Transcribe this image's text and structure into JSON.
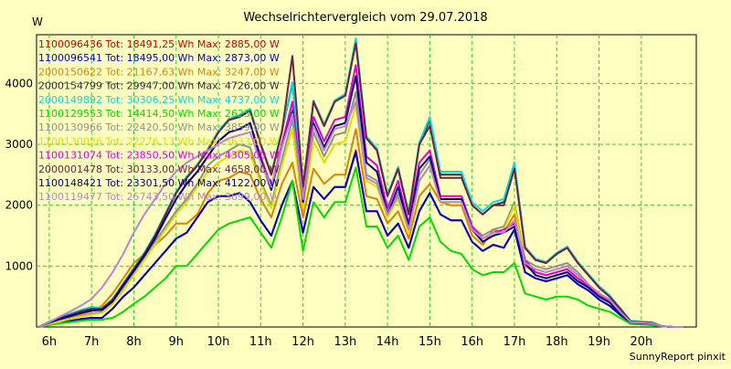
{
  "chart_data": {
    "type": "line",
    "title": "Wechselrichtervergleich vom 29.07.2018",
    "ylabel": "W",
    "footer": "SunnyReport pinxit",
    "ylim": [
      0,
      4800
    ],
    "xlim": [
      5.7,
      21.3
    ],
    "yticks": [
      1000,
      2000,
      3000,
      4000
    ],
    "xticks": [
      {
        "v": 6,
        "label": "6h"
      },
      {
        "v": 7,
        "label": "7h"
      },
      {
        "v": 8,
        "label": "8h"
      },
      {
        "v": 9,
        "label": "9h"
      },
      {
        "v": 10,
        "label": "10h"
      },
      {
        "v": 11,
        "label": "11h"
      },
      {
        "v": 12,
        "label": "12h"
      },
      {
        "v": 13,
        "label": "13h"
      },
      {
        "v": 14,
        "label": "14h"
      },
      {
        "v": 15,
        "label": "15h"
      },
      {
        "v": 16,
        "label": "16h"
      },
      {
        "v": 17,
        "label": "17h"
      },
      {
        "v": 18,
        "label": "18h"
      },
      {
        "v": 19,
        "label": "19h"
      },
      {
        "v": 20,
        "label": "20h"
      }
    ],
    "grid": true,
    "legend_position": "top-left",
    "x": [
      5.75,
      6.0,
      6.25,
      6.5,
      6.75,
      7.0,
      7.25,
      7.5,
      7.75,
      8.0,
      8.25,
      8.5,
      8.75,
      9.0,
      9.25,
      9.5,
      9.75,
      10.0,
      10.25,
      10.5,
      10.75,
      11.0,
      11.25,
      11.5,
      11.75,
      12.0,
      12.25,
      12.5,
      12.75,
      13.0,
      13.25,
      13.5,
      13.75,
      14.0,
      14.25,
      14.5,
      14.75,
      15.0,
      15.25,
      15.5,
      15.75,
      16.0,
      16.25,
      16.5,
      16.75,
      17.0,
      17.25,
      17.5,
      17.75,
      18.0,
      18.25,
      18.5,
      18.75,
      19.0,
      19.25,
      19.5,
      19.75,
      20.0,
      20.25,
      20.5,
      20.75,
      21.0
    ],
    "series": [
      {
        "name": "1100096436",
        "label": "1100096436 Tot: 18491,25 Wh Max: 2885,00 W",
        "color": "#cc0000",
        "values": [
          0,
          40,
          80,
          100,
          130,
          150,
          150,
          300,
          500,
          650,
          850,
          1050,
          1250,
          1450,
          1550,
          1800,
          2050,
          2150,
          2150,
          2200,
          2050,
          1750,
          1500,
          2000,
          2400,
          1550,
          2300,
          2100,
          2300,
          2300,
          2900,
          1900,
          1900,
          1500,
          1700,
          1300,
          1900,
          2200,
          1850,
          1750,
          1750,
          1400,
          1250,
          1350,
          1300,
          1600,
          900,
          800,
          750,
          800,
          850,
          700,
          600,
          450,
          350,
          200,
          70,
          60,
          50,
          10,
          0,
          0
        ]
      },
      {
        "name": "1100096541",
        "label": "1100096541 Tot: 18495,00 Wh Max: 2873,00 W",
        "color": "#0000cc",
        "values": [
          0,
          40,
          80,
          100,
          130,
          150,
          150,
          300,
          500,
          650,
          850,
          1050,
          1250,
          1450,
          1550,
          1800,
          2050,
          2150,
          2150,
          2200,
          2050,
          1750,
          1500,
          2000,
          2400,
          1550,
          2300,
          2100,
          2300,
          2300,
          2870,
          1900,
          1900,
          1500,
          1700,
          1300,
          1900,
          2200,
          1850,
          1750,
          1750,
          1400,
          1250,
          1350,
          1300,
          1600,
          900,
          800,
          750,
          800,
          850,
          700,
          600,
          450,
          350,
          200,
          70,
          60,
          50,
          10,
          0,
          0
        ]
      },
      {
        "name": "2000150622",
        "label": "2000150622 Tot: 21167,63 Wh Max: 3247,00 W",
        "color": "#e08000",
        "values": [
          0,
          60,
          110,
          160,
          210,
          260,
          350,
          550,
          800,
          1050,
          1200,
          1350,
          1500,
          1700,
          1700,
          1850,
          2200,
          2400,
          2450,
          2550,
          2500,
          2100,
          1800,
          2350,
          2700,
          1800,
          2600,
          2350,
          2500,
          2500,
          3250,
          2150,
          2100,
          1700,
          1900,
          1450,
          2150,
          2350,
          2050,
          2000,
          2000,
          1500,
          1350,
          1600,
          1550,
          1850,
          1000,
          900,
          850,
          900,
          950,
          800,
          650,
          500,
          400,
          230,
          80,
          70,
          60,
          10,
          0,
          0
        ]
      },
      {
        "name": "2000154799",
        "label": "2000154799 Tot: 29947,00 Wh Max: 4726,00 W",
        "color": "#303030",
        "values": [
          0,
          80,
          150,
          200,
          260,
          300,
          300,
          450,
          700,
          950,
          1200,
          1500,
          1850,
          2200,
          2450,
          2650,
          2900,
          3200,
          3400,
          3450,
          3550,
          3000,
          2500,
          3200,
          4000,
          2300,
          3700,
          3300,
          3700,
          3800,
          4700,
          3100,
          2900,
          2150,
          2600,
          1850,
          3000,
          3400,
          2500,
          2500,
          2500,
          2000,
          1850,
          2000,
          2050,
          2650,
          1300,
          1100,
          1050,
          1200,
          1300,
          1050,
          850,
          650,
          500,
          300,
          90,
          80,
          70,
          10,
          0,
          0
        ]
      },
      {
        "name": "2000149892",
        "label": "2000149892 Tot: 30306,25 Wh Max: 4737,00 W",
        "color": "#00dddd",
        "values": [
          0,
          90,
          160,
          220,
          280,
          330,
          310,
          460,
          720,
          970,
          1220,
          1520,
          1870,
          2220,
          2470,
          2670,
          2920,
          3220,
          3420,
          3480,
          3580,
          3020,
          2520,
          3220,
          4020,
          2320,
          3720,
          3330,
          3720,
          3830,
          4740,
          3130,
          2930,
          2180,
          2630,
          1880,
          3030,
          3450,
          2550,
          2550,
          2550,
          2050,
          1900,
          2050,
          2100,
          2700,
          1320,
          1120,
          1070,
          1220,
          1320,
          1070,
          870,
          670,
          520,
          310,
          100,
          90,
          80,
          10,
          0,
          0
        ]
      },
      {
        "name": "1100129553",
        "label": "1100129553 Tot: 14414,50 Wh Max: 2623,00 W",
        "color": "#00dd00",
        "values": [
          0,
          30,
          60,
          80,
          100,
          120,
          120,
          150,
          250,
          380,
          500,
          650,
          800,
          1000,
          1000,
          1200,
          1400,
          1600,
          1700,
          1750,
          1800,
          1550,
          1300,
          1800,
          2400,
          1250,
          2050,
          1800,
          2050,
          2050,
          2620,
          1650,
          1650,
          1300,
          1500,
          1100,
          1650,
          1800,
          1400,
          1250,
          1200,
          950,
          850,
          900,
          900,
          1050,
          550,
          500,
          450,
          500,
          500,
          450,
          350,
          300,
          250,
          150,
          50,
          40,
          30,
          10,
          0,
          0
        ]
      },
      {
        "name": "1100130966",
        "label": "1100130966 Tot: 22420,50 Wh Max: 3859,00 W",
        "color": "#909090",
        "values": [
          0,
          50,
          100,
          140,
          180,
          220,
          250,
          400,
          650,
          900,
          1150,
          1400,
          1650,
          1900,
          2100,
          2350,
          2650,
          2800,
          2900,
          3000,
          2950,
          2400,
          2000,
          2750,
          3400,
          2000,
          3200,
          2800,
          3150,
          3200,
          3860,
          2500,
          2400,
          1850,
          2200,
          1600,
          2500,
          2750,
          2100,
          2100,
          2100,
          1650,
          1500,
          1600,
          1650,
          2050,
          1100,
          1000,
          950,
          1000,
          1050,
          900,
          700,
          550,
          450,
          250,
          80,
          70,
          60,
          10,
          0,
          0
        ]
      },
      {
        "name": "1100130026",
        "label": "1100130026 Tot: 22276,13 Wh Max: 3633,00 W",
        "color": "#dddd00",
        "values": [
          0,
          50,
          90,
          130,
          170,
          200,
          230,
          380,
          600,
          850,
          1100,
          1350,
          1600,
          1850,
          2050,
          2300,
          2550,
          2700,
          2800,
          2900,
          2850,
          2350,
          1950,
          2650,
          3250,
          1950,
          3050,
          2700,
          3000,
          3050,
          3630,
          2400,
          2300,
          1800,
          2100,
          1550,
          2400,
          2650,
          2050,
          2050,
          2050,
          1600,
          1450,
          1550,
          1600,
          2000,
          1050,
          950,
          900,
          950,
          1000,
          850,
          680,
          530,
          430,
          240,
          75,
          65,
          55,
          10,
          0,
          0
        ]
      },
      {
        "name": "1100131074",
        "label": "1100131074 Tot: 23850,50 Wh Max: 4305,00 W",
        "color": "#dd00dd",
        "values": [
          0,
          70,
          130,
          180,
          230,
          270,
          280,
          420,
          680,
          920,
          1170,
          1450,
          1780,
          2100,
          2350,
          2550,
          2800,
          3050,
          3200,
          3250,
          3350,
          2800,
          2300,
          3000,
          3700,
          2100,
          3450,
          3050,
          3400,
          3450,
          4300,
          2800,
          2650,
          1950,
          2400,
          1700,
          2700,
          2900,
          2150,
          2150,
          2150,
          1650,
          1450,
          1550,
          1600,
          1700,
          1100,
          900,
          850,
          900,
          950,
          800,
          680,
          530,
          430,
          240,
          80,
          70,
          60,
          10,
          0,
          0
        ]
      },
      {
        "name": "2000001478",
        "label": "2000001478 Tot: 30133,00 Wh Max: 4658,00 W",
        "color": "#702040",
        "values": [
          0,
          80,
          150,
          200,
          260,
          300,
          300,
          450,
          700,
          950,
          1200,
          1500,
          1850,
          2200,
          2450,
          2650,
          2900,
          3200,
          3400,
          3450,
          3550,
          3000,
          2500,
          3200,
          4450,
          2300,
          3700,
          3300,
          3700,
          3800,
          4660,
          3100,
          2900,
          2150,
          2600,
          1850,
          3000,
          3300,
          2450,
          2450,
          2450,
          2000,
          1850,
          2000,
          2000,
          2600,
          1300,
          1100,
          1050,
          1200,
          1300,
          1050,
          850,
          650,
          500,
          300,
          90,
          80,
          70,
          10,
          0,
          0
        ]
      },
      {
        "name": "1100148421",
        "label": "1100148421 Tot: 23301,50 Wh Max: 4122,00 W",
        "color": "#000080",
        "values": [
          0,
          70,
          130,
          180,
          230,
          270,
          280,
          420,
          680,
          920,
          1170,
          1450,
          1780,
          2100,
          2350,
          2550,
          2800,
          3050,
          3200,
          3250,
          3350,
          2750,
          2250,
          2950,
          3550,
          2050,
          3350,
          2950,
          3300,
          3350,
          4120,
          2700,
          2550,
          1850,
          2300,
          1650,
          2600,
          2800,
          2100,
          2100,
          2100,
          1600,
          1400,
          1500,
          1550,
          1650,
          1050,
          850,
          800,
          850,
          900,
          750,
          650,
          500,
          400,
          220,
          75,
          65,
          55,
          10,
          0,
          0
        ]
      },
      {
        "name": "1100119477",
        "label": "1100119477 Tot: 25743,50 Wh Max: 3699,00 W",
        "color": "#c080d0",
        "values": [
          0,
          80,
          170,
          260,
          350,
          460,
          650,
          900,
          1200,
          1550,
          1850,
          2100,
          2350,
          2550,
          2700,
          2800,
          2900,
          3000,
          3100,
          3150,
          3200,
          2700,
          2300,
          2950,
          3500,
          2100,
          3300,
          2900,
          3250,
          3300,
          3700,
          2450,
          2350,
          1850,
          2150,
          1600,
          2400,
          2650,
          2050,
          2050,
          2050,
          1600,
          1450,
          1550,
          1550,
          1750,
          1050,
          950,
          900,
          950,
          1000,
          850,
          700,
          550,
          450,
          250,
          80,
          70,
          60,
          10,
          0,
          0
        ]
      }
    ]
  }
}
